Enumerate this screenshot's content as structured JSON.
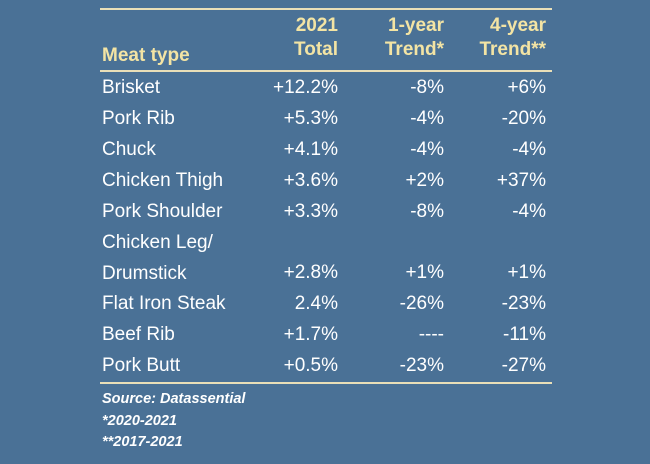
{
  "table": {
    "headers": {
      "meat_type": "Meat type",
      "total_line1": "2021",
      "total_line2": "Total",
      "one_year_line1": "1-year",
      "one_year_line2": "Trend*",
      "four_year_line1": "4-year",
      "four_year_line2": "Trend**"
    },
    "rows": [
      {
        "meat": "Brisket",
        "total": "+12.2%",
        "one_year": "-8%",
        "four_year": "+6%"
      },
      {
        "meat": "Pork Rib",
        "total": "+5.3%",
        "one_year": "-4%",
        "four_year": "-20%"
      },
      {
        "meat": "Chuck",
        "total": "+4.1%",
        "one_year": "-4%",
        "four_year": "-4%"
      },
      {
        "meat": "Chicken Thigh",
        "total": "+3.6%",
        "one_year": "+2%",
        "four_year": "+37%"
      },
      {
        "meat": "Pork Shoulder",
        "total": "+3.3%",
        "one_year": "-8%",
        "four_year": "-4%"
      },
      {
        "meat_line1": "Chicken Leg/",
        "meat_line2": "Drumstick",
        "total": "+2.8%",
        "one_year": "+1%",
        "four_year": "+1%"
      },
      {
        "meat": "Flat Iron Steak",
        "total": "2.4%",
        "one_year": "-26%",
        "four_year": "-23%"
      },
      {
        "meat": "Beef Rib",
        "total": "+1.7%",
        "one_year": "----",
        "four_year": "-11%"
      },
      {
        "meat": "Pork Butt",
        "total": "+0.5%",
        "one_year": "-23%",
        "four_year": "-27%"
      }
    ]
  },
  "notes": {
    "source": "Source: Datassential",
    "footnote1": "*2020-2021",
    "footnote2": "**2017-2021"
  },
  "colors": {
    "background": "#4a7196",
    "header_text": "#f3e4a4",
    "rule": "#e9dfb8",
    "body_text": "#ffffff"
  }
}
